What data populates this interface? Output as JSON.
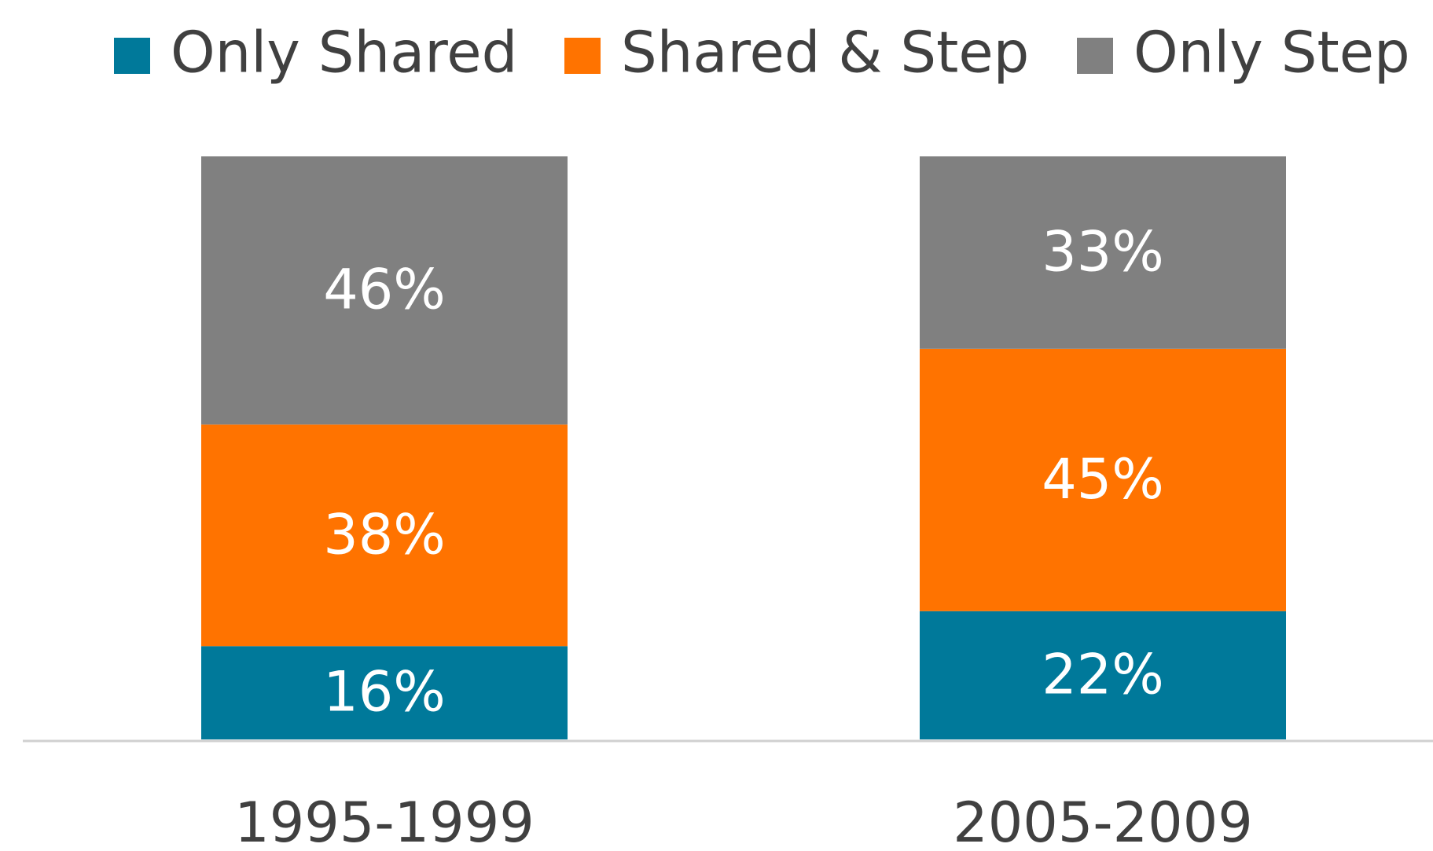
{
  "chart_data": {
    "type": "stacked_bar",
    "categories": [
      "1995-1999",
      "2005-2009"
    ],
    "series": [
      {
        "name": "Only Shared",
        "color": "#00799a",
        "values": [
          16,
          22
        ],
        "value_labels": [
          "16%",
          "22%"
        ]
      },
      {
        "name": "Shared & Step",
        "color": "#ff7300",
        "values": [
          38,
          45
        ],
        "value_labels": [
          "38%",
          "45%"
        ]
      },
      {
        "name": "Only Step",
        "color": "#808080",
        "values": [
          46,
          33
        ],
        "value_labels": [
          "46%",
          "33%"
        ]
      }
    ],
    "ylim": [
      0,
      100
    ],
    "legend": "top"
  }
}
